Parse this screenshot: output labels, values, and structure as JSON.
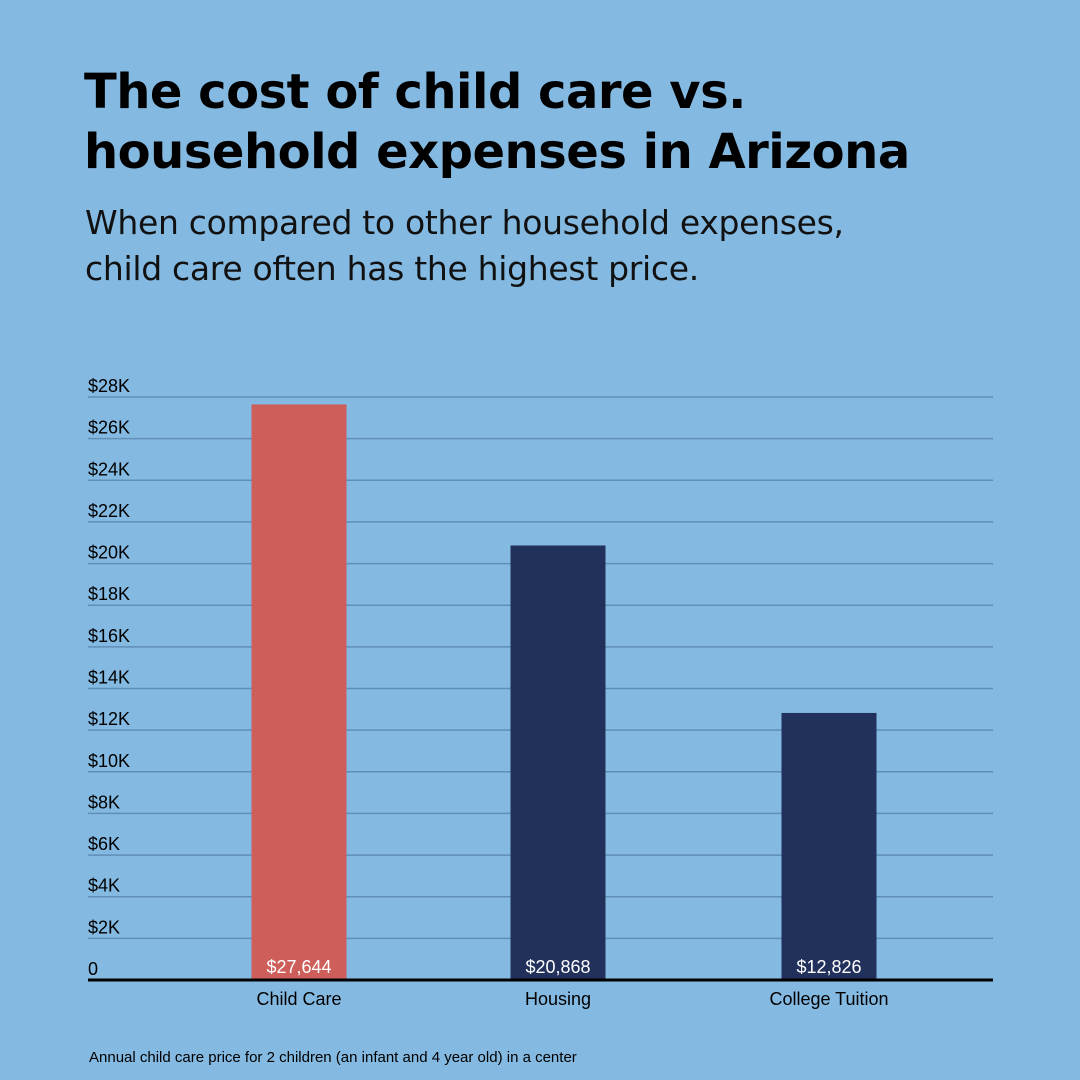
{
  "title_lines": [
    "The cost of child care vs.",
    "household expenses in Arizona"
  ],
  "subtitle_lines": [
    "When compared to other household expenses,",
    "child care often has the highest price."
  ],
  "footnote": "Annual child care price for 2 children (an infant and 4 year old) in a center",
  "colors": {
    "background": "#84bae2",
    "highlight_bar": "#cd5e5a",
    "bar": "#22315c",
    "gridline": "#5f8eb6",
    "axis": "#000000"
  },
  "chart_data": {
    "type": "bar",
    "title": "The cost of child care vs. household expenses in Arizona",
    "xlabel": "",
    "ylabel": "",
    "categories": [
      "Child Care",
      "Housing",
      "College Tuition"
    ],
    "values": [
      27644,
      20868,
      12826
    ],
    "value_labels": [
      "$27,644",
      "$20,868",
      "$12,826"
    ],
    "highlight_index": 0,
    "ylim": [
      0,
      28000
    ],
    "yticks": [
      0,
      2000,
      4000,
      6000,
      8000,
      10000,
      12000,
      14000,
      16000,
      18000,
      20000,
      22000,
      24000,
      26000,
      28000
    ],
    "ytick_labels": [
      "0",
      "$2K",
      "$4K",
      "$6K",
      "$8K",
      "$10K",
      "$12K",
      "$14K",
      "$16K",
      "$18K",
      "$20K",
      "$22K",
      "$24K",
      "$26K",
      "$28K"
    ],
    "grid": true,
    "legend": "none"
  }
}
